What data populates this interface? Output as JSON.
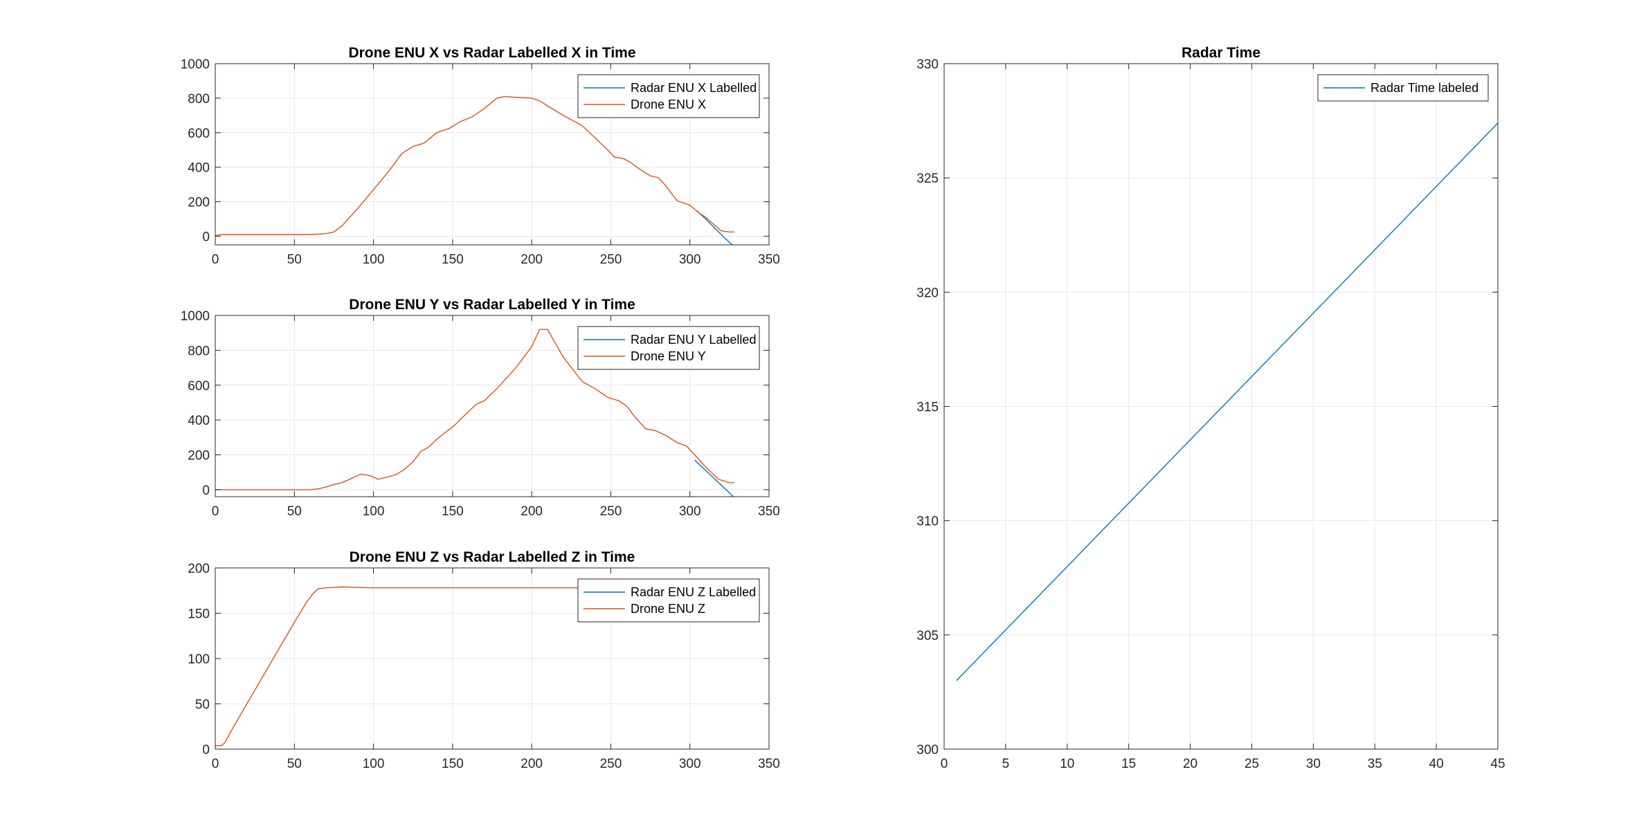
{
  "chart_data": [
    {
      "type": "line",
      "title": "Drone ENU X vs Radar Labelled X in Time",
      "xlabel": "",
      "ylabel": "",
      "xlim": [
        0,
        350
      ],
      "ylim": [
        -50,
        1000
      ],
      "xticks": [
        0,
        50,
        100,
        150,
        200,
        250,
        300,
        350
      ],
      "yticks": [
        0,
        200,
        400,
        600,
        800,
        1000
      ],
      "grid": true,
      "legend_position": "top-right",
      "series": [
        {
          "name": "Radar ENU X Labelled",
          "color": "#0072BD",
          "x": [
            304,
            310,
            316,
            322,
            328
          ],
          "y": [
            150,
            100,
            45,
            -10,
            -60
          ]
        },
        {
          "name": "Drone ENU X",
          "color": "#D95319",
          "x": [
            0,
            5,
            20,
            40,
            60,
            65,
            70,
            75,
            80,
            90,
            100,
            110,
            118,
            125,
            132,
            140,
            148,
            155,
            162,
            170,
            178,
            183,
            190,
            200,
            205,
            210,
            220,
            232,
            240,
            248,
            252,
            258,
            262,
            268,
            275,
            280,
            285,
            292,
            300,
            305,
            310,
            315,
            320,
            325,
            328
          ],
          "y": [
            5,
            10,
            10,
            10,
            10,
            12,
            15,
            25,
            60,
            160,
            270,
            380,
            480,
            520,
            540,
            600,
            625,
            665,
            690,
            740,
            800,
            810,
            805,
            800,
            785,
            755,
            700,
            640,
            570,
            500,
            460,
            450,
            430,
            390,
            350,
            340,
            290,
            205,
            180,
            140,
            110,
            70,
            30,
            25,
            25
          ]
        }
      ]
    },
    {
      "type": "line",
      "title": "Drone ENU Y vs Radar Labelled Y in Time",
      "xlabel": "",
      "ylabel": "",
      "xlim": [
        0,
        350
      ],
      "ylim": [
        -40,
        1000
      ],
      "xticks": [
        0,
        50,
        100,
        150,
        200,
        250,
        300,
        350
      ],
      "yticks": [
        0,
        200,
        400,
        600,
        800,
        1000
      ],
      "grid": true,
      "legend_position": "top-right",
      "series": [
        {
          "name": "Radar ENU Y Labelled",
          "color": "#0072BD",
          "x": [
            303,
            310,
            317,
            324,
            328
          ],
          "y": [
            170,
            110,
            50,
            -10,
            -45
          ]
        },
        {
          "name": "Drone ENU Y",
          "color": "#D95319",
          "x": [
            0,
            20,
            40,
            60,
            65,
            70,
            75,
            80,
            85,
            92,
            98,
            103,
            110,
            115,
            120,
            125,
            130,
            135,
            140,
            145,
            150,
            158,
            165,
            170,
            178,
            185,
            190,
            200,
            205,
            210,
            220,
            232,
            240,
            248,
            255,
            260,
            265,
            272,
            278,
            285,
            292,
            298,
            303,
            310,
            318,
            325,
            328
          ],
          "y": [
            0,
            0,
            0,
            0,
            5,
            15,
            30,
            40,
            60,
            90,
            80,
            60,
            75,
            90,
            120,
            160,
            220,
            245,
            290,
            325,
            360,
            430,
            490,
            510,
            580,
            650,
            700,
            820,
            920,
            920,
            760,
            620,
            580,
            530,
            510,
            480,
            420,
            350,
            340,
            310,
            270,
            250,
            200,
            130,
            60,
            40,
            40
          ]
        }
      ]
    },
    {
      "type": "line",
      "title": "Drone ENU Z vs Radar Labelled Z in Time",
      "xlabel": "",
      "ylabel": "",
      "xlim": [
        0,
        350
      ],
      "ylim": [
        0,
        200
      ],
      "xticks": [
        0,
        50,
        100,
        150,
        200,
        250,
        300,
        350
      ],
      "yticks": [
        0,
        50,
        100,
        150,
        200
      ],
      "grid": true,
      "legend_position": "top-right",
      "series": [
        {
          "name": "Radar ENU Z Labelled",
          "color": "#0072BD",
          "x": [],
          "y": []
        },
        {
          "name": "Drone ENU Z",
          "color": "#D95319",
          "x": [
            0,
            4,
            6,
            10,
            20,
            30,
            40,
            50,
            58,
            62,
            65,
            70,
            80,
            100,
            130,
            150,
            170,
            200,
            230,
            250
          ],
          "y": [
            4,
            4,
            7,
            20,
            50,
            80,
            110,
            140,
            163,
            172,
            177,
            178,
            179,
            178,
            178,
            178,
            178,
            178,
            178,
            178
          ]
        }
      ]
    },
    {
      "type": "line",
      "title": "Radar Time",
      "xlabel": "",
      "ylabel": "",
      "xlim": [
        0,
        45
      ],
      "ylim": [
        300,
        330
      ],
      "xticks": [
        0,
        5,
        10,
        15,
        20,
        25,
        30,
        35,
        40,
        45
      ],
      "yticks": [
        300,
        305,
        310,
        315,
        320,
        325,
        330
      ],
      "grid": true,
      "legend_position": "top-right",
      "series": [
        {
          "name": "Radar Time labeled",
          "color": "#0072BD",
          "x": [
            1,
            45
          ],
          "y": [
            303,
            327.4
          ]
        }
      ]
    }
  ]
}
